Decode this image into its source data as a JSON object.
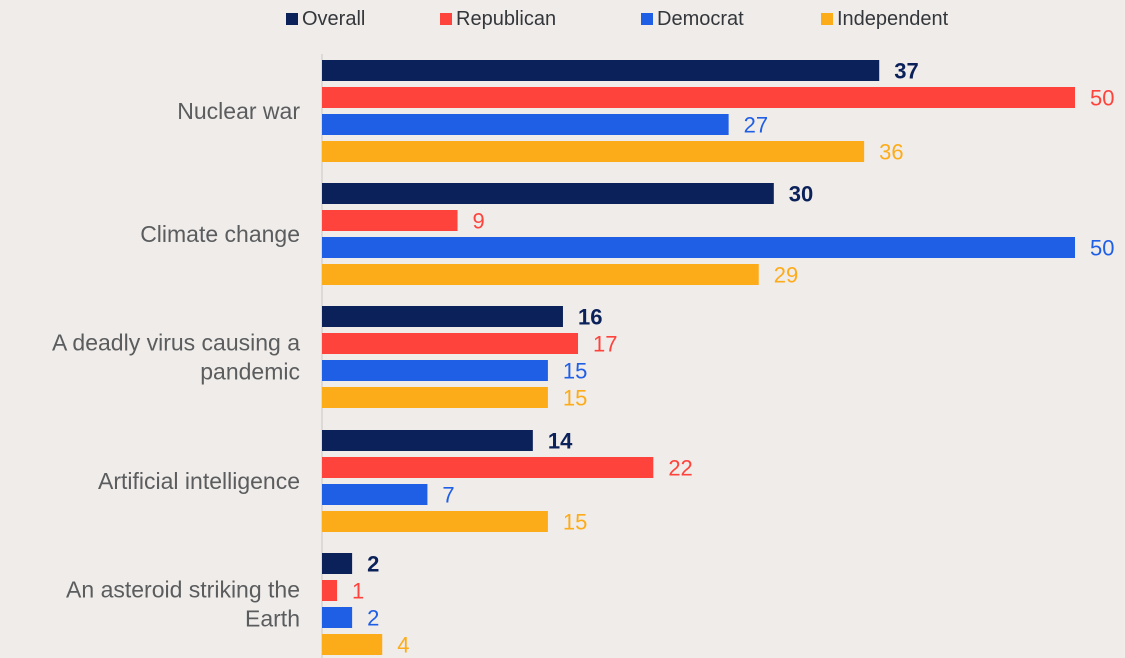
{
  "chart_data": {
    "type": "bar",
    "orientation": "horizontal",
    "categories": [
      [
        "Nuclear war"
      ],
      [
        "Climate change"
      ],
      [
        "A deadly virus causing a",
        "pandemic"
      ],
      [
        "Artificial intelligence"
      ],
      [
        "An asteroid striking the",
        "Earth"
      ]
    ],
    "series": [
      {
        "name": "Overall",
        "color": "#0b2159",
        "values": [
          37,
          30,
          16,
          14,
          2
        ]
      },
      {
        "name": "Republican",
        "color": "#fe433c",
        "values": [
          50,
          9,
          17,
          22,
          1
        ]
      },
      {
        "name": "Democrat",
        "color": "#1f5fe6",
        "values": [
          27,
          50,
          15,
          7,
          2
        ]
      },
      {
        "name": "Independent",
        "color": "#fdac19",
        "values": [
          36,
          29,
          15,
          15,
          4
        ]
      }
    ],
    "xlim": [
      0,
      50
    ],
    "grid": false,
    "legend_position": "top",
    "data_labels": true
  }
}
